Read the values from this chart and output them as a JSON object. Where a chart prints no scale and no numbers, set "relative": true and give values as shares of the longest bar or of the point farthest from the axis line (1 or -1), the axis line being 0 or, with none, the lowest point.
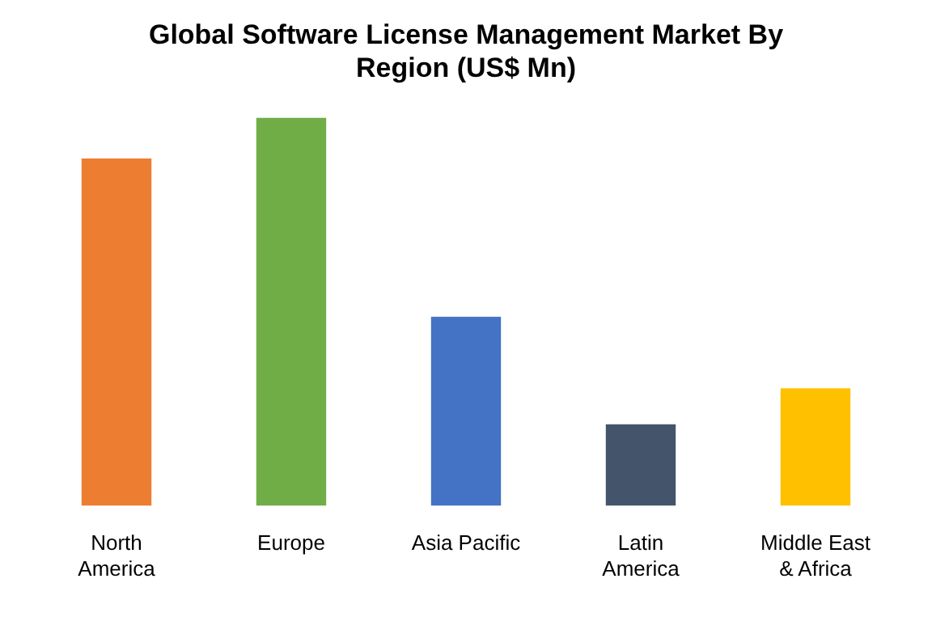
{
  "chart_data": {
    "type": "bar",
    "title": "Global Software License Management Market By Region (US$ Mn)",
    "categories": [
      "North America",
      "Europe",
      "Asia Pacific",
      "Latin America",
      "Middle East & Africa"
    ],
    "values": [
      0.895,
      1,
      0.487,
      0.21,
      0.303
    ],
    "colors": [
      "#ed7d31",
      "#70ad47",
      "#4472c4",
      "#44546a",
      "#ffc000"
    ],
    "relative": true,
    "grid": false,
    "legend": false
  }
}
